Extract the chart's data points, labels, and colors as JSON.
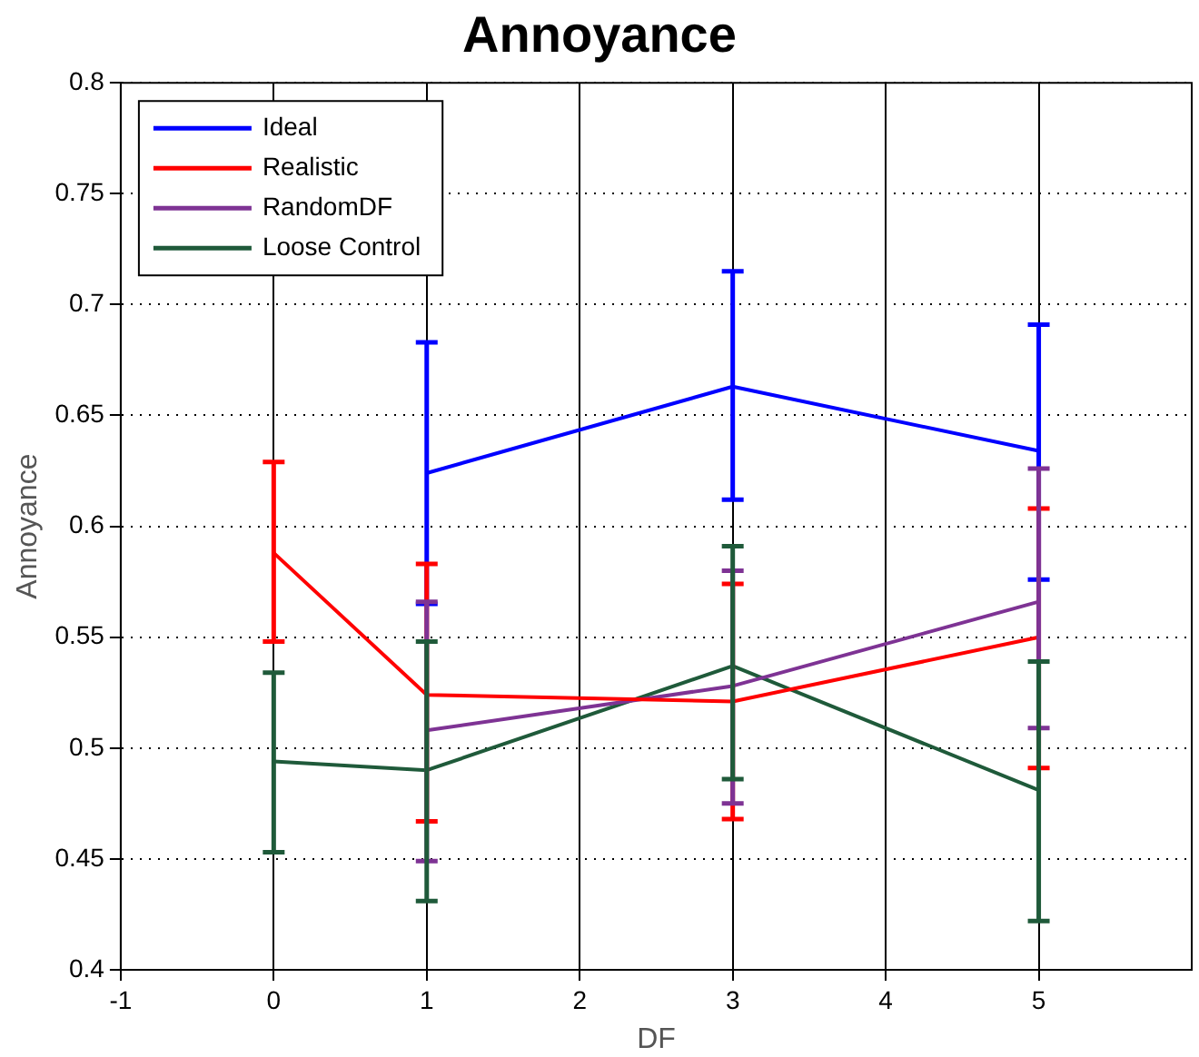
{
  "chart_data": {
    "type": "line",
    "title": "Annoyance",
    "xlabel": "DF",
    "ylabel": "Annoyance",
    "xlim": [
      -1,
      6
    ],
    "xticks": [
      -1,
      0,
      1,
      2,
      3,
      4,
      5
    ],
    "ylim": [
      0.4,
      0.8
    ],
    "yticks": [
      0.4,
      0.45,
      0.5,
      0.55,
      0.6,
      0.65,
      0.7,
      0.75,
      0.8
    ],
    "grid": true,
    "legend": "top left",
    "marker": "none",
    "line_style": "solid",
    "series": [
      {
        "name": "Ideal",
        "color": "#0000ff",
        "x": [
          1,
          3,
          5
        ],
        "values": [
          0.624,
          0.663,
          0.634
        ],
        "errors": [
          [
            0.565,
            0.683
          ],
          [
            0.612,
            0.715
          ],
          [
            0.576,
            0.691
          ]
        ]
      },
      {
        "name": "Realistic",
        "color": "#ff0000",
        "x": [
          0,
          1,
          3,
          5
        ],
        "values": [
          0.588,
          0.524,
          0.521,
          0.55
        ],
        "errors": [
          [
            0.548,
            0.629
          ],
          [
            0.467,
            0.583
          ],
          [
            0.468,
            0.574
          ],
          [
            0.491,
            0.608
          ]
        ]
      },
      {
        "name": "RandomDF",
        "color": "#7e3394",
        "x": [
          1,
          3,
          5
        ],
        "values": [
          0.508,
          0.528,
          0.566
        ],
        "errors": [
          [
            0.449,
            0.566
          ],
          [
            0.475,
            0.58
          ],
          [
            0.509,
            0.626
          ]
        ]
      },
      {
        "name": "Loose Control",
        "color": "#1f5a3a",
        "x": [
          0,
          1,
          3,
          5
        ],
        "values": [
          0.494,
          0.49,
          0.537,
          0.481
        ],
        "errors": [
          [
            0.453,
            0.534
          ],
          [
            0.431,
            0.548
          ],
          [
            0.486,
            0.591
          ],
          [
            0.422,
            0.539
          ]
        ]
      }
    ]
  }
}
